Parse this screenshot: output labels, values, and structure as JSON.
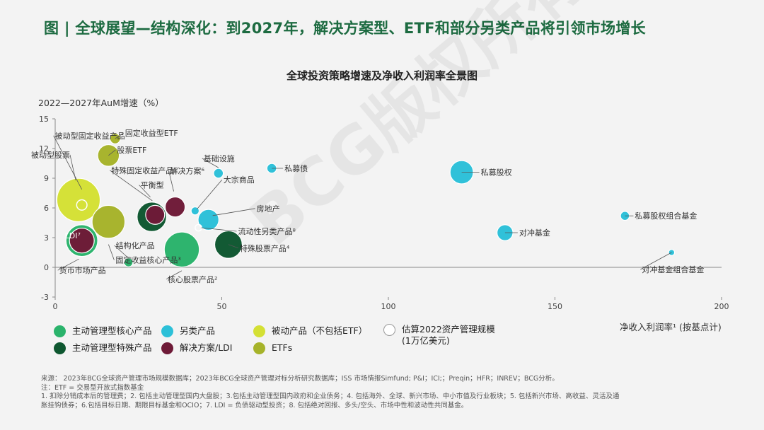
{
  "page_title": "图 | 全球展望—结构深化：到2027年，解决方案型、ETF和部分另类产品将引领市场增长",
  "watermark": "BCG版权所有",
  "chart_data": {
    "type": "scatter",
    "subtype": "bubble",
    "title": "全球投资策略增速及净收入利润率全景图",
    "ylabel": "2022—2027年AuM增速（%）",
    "xlabel": "净收入利润率¹ (按基点计)",
    "xlim": [
      0,
      200
    ],
    "ylim": [
      -3,
      15
    ],
    "xticks": [
      0,
      50,
      100,
      150,
      200
    ],
    "yticks": [
      -3,
      0,
      3,
      6,
      9,
      12,
      15
    ],
    "grid": false,
    "legend_position": "bottom",
    "colors": {
      "主动管理型核心产品": "#2ab36b",
      "另类产品": "#2cc0d8",
      "被动产品（不包括ETF）": "#d4e034",
      "主动管理型特殊产品": "#0e5730",
      "解决方案/LDI": "#6e1a37",
      "ETFs": "#a6b32a"
    },
    "legend": [
      {
        "label": "主动管理型核心产品",
        "color": "#2ab36b"
      },
      {
        "label": "另类产品",
        "color": "#2cc0d8"
      },
      {
        "label": "被动产品（不包括ETF）",
        "color": "#d4e034"
      },
      {
        "label": "估算2022资产管理规模 (1万亿美元)",
        "color": "#ffffff"
      },
      {
        "label": "主动管理型特殊产品",
        "color": "#0e5730"
      },
      {
        "label": "解决方案/LDI",
        "color": "#6e1a37"
      },
      {
        "label": "ETFs",
        "color": "#a6b32a"
      }
    ],
    "points": [
      {
        "label": "被动型股票",
        "category": "被动产品（不包括ETF）",
        "x": 7,
        "y": 6.8,
        "aum": 26
      },
      {
        "label": "被动型固定收益产品",
        "category": "被动产品（不包括ETF）",
        "x": 8,
        "y": 6.3,
        "aum": 1.5,
        "style": "outline"
      },
      {
        "label": "固定收益型ETF",
        "category": "ETFs",
        "x": 18,
        "y": 13,
        "aum": 1.5
      },
      {
        "label": "股票ETF",
        "category": "ETFs",
        "x": 16,
        "y": 11.3,
        "aum": 6.5
      },
      {
        "label": "LDI⁷",
        "category": "解决方案/LDI",
        "x": 8,
        "y": 2.7,
        "aum": 8.5
      },
      {
        "label": "货币市场产品",
        "category": "主动管理型核心产品",
        "x": 8,
        "y": 2.7,
        "aum": 14
      },
      {
        "label": "固定收益核心产品³",
        "category": "ETFs",
        "x": 16,
        "y": 4.6,
        "aum": 15
      },
      {
        "label": "结构化产品",
        "category": "主动管理型核心产品",
        "x": 22,
        "y": 0.5,
        "aum": 1.1
      },
      {
        "label": "平衡型",
        "category": "主动管理型特殊产品",
        "x": 29,
        "y": 5.1,
        "aum": 12
      },
      {
        "label": "特殊固定收益产品⁵",
        "category": "解决方案/LDI",
        "x": 30,
        "y": 5.3,
        "aum": 5
      },
      {
        "label": "解决方案⁶",
        "category": "解决方案/LDI",
        "x": 36,
        "y": 6.1,
        "aum": 5.5
      },
      {
        "label": "核心股票产品²",
        "category": "主动管理型核心产品",
        "x": 38,
        "y": 1.8,
        "aum": 17
      },
      {
        "label": "大宗商品",
        "category": "另类产品",
        "x": 42,
        "y": 5.7,
        "aum": 0.9
      },
      {
        "label": "房地产",
        "category": "另类产品",
        "x": 46,
        "y": 4.8,
        "aum": 6
      },
      {
        "label": "流动性另类产品⁸",
        "category": "另类产品",
        "x": 43,
        "y": 4.0,
        "aum": 0.6,
        "style": "outline"
      },
      {
        "label": "特殊股票产品⁴",
        "category": "主动管理型特殊产品",
        "x": 52,
        "y": 2.3,
        "aum": 10.5
      },
      {
        "label": "基础设施",
        "category": "另类产品",
        "x": 49,
        "y": 9.5,
        "aum": 1.3
      },
      {
        "label": "私募债",
        "category": "另类产品",
        "x": 65,
        "y": 10,
        "aum": 1.3
      },
      {
        "label": "私募股权",
        "category": "另类产品",
        "x": 122,
        "y": 9.6,
        "aum": 7.5
      },
      {
        "label": "私募股权组合基金",
        "category": "另类产品",
        "x": 171,
        "y": 5.2,
        "aum": 1.1
      },
      {
        "label": "对冲基金",
        "category": "另类产品",
        "x": 135,
        "y": 3.5,
        "aum": 3.5
      },
      {
        "label": "对冲基金组合基金",
        "category": "另类产品",
        "x": 185,
        "y": 1.5,
        "aum": 0.5
      }
    ]
  },
  "footnotes": [
    "来源： 2023年BCG全球资产管理市场规模数据库；2023年BCG全球资产管理对标分析研究数据库；ISS 市场情报Simfund; P&I；ICI;；Preqin；HFR；INREV；BCG分析。",
    "注：ETF = 交易型开放式指数基金",
    "1. 扣除分销成本后的管理费；2. 包括主动管理型国内大盘股；3.包括主动管理型国内政府和企业债务；4. 包括海外、全球、新兴市场、中小市值及行业板块；5. 包括新兴市场、高收益、灵活及通",
    "胀挂钩债券；6.包括目标日期、期限目标基金和OCIO；7. LDI = 负债驱动型投资；8. 包括绝对回报、多头/空头、市场中性和波动性共同基金。"
  ]
}
